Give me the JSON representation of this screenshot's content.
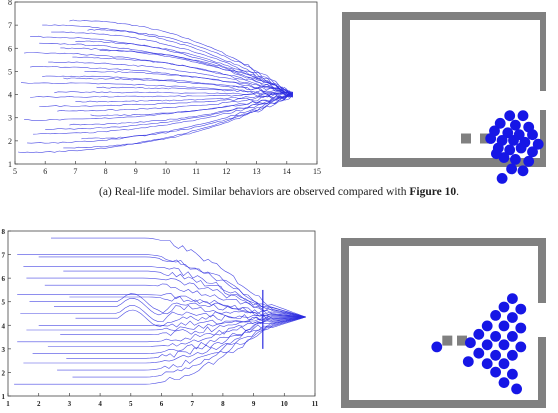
{
  "caption": {
    "prefix": "(a) Real-life model. Similar behaviors are observed compared with ",
    "figure_ref": "Figure 10",
    "suffix": "."
  },
  "colors": {
    "trajectory": "#2b2bdf",
    "agent": "#1616e6",
    "wall": "#808080",
    "obstacle": "#808080"
  },
  "chart_data": [
    {
      "type": "line",
      "title": "",
      "xlabel": "",
      "ylabel": "",
      "xlim": [
        5,
        15
      ],
      "ylim": [
        1,
        8
      ],
      "x_ticks": [
        5,
        6,
        7,
        8,
        9,
        10,
        11,
        12,
        13,
        14,
        15
      ],
      "y_ticks": [
        1,
        2,
        3,
        4,
        5,
        6,
        7,
        8
      ],
      "exit_point": [
        14.2,
        4.0
      ],
      "start_y": [
        7.2,
        7.0,
        6.8,
        6.7,
        6.5,
        6.3,
        6.2,
        6.0,
        5.9,
        5.8,
        5.6,
        5.4,
        5.2,
        5.0,
        4.8,
        4.7,
        4.5,
        4.3,
        4.1,
        3.9,
        3.7,
        3.5,
        3.3,
        3.1,
        2.9,
        2.7,
        2.5,
        2.3,
        2.1,
        1.9,
        1.7,
        1.5
      ],
      "start_x": [
        6.8,
        5.9,
        7.4,
        6.2,
        5.5,
        7.0,
        5.8,
        6.5,
        7.8,
        5.3,
        6.9,
        6.1,
        5.5,
        7.3,
        5.9,
        6.6,
        5.2,
        7.7,
        6.3,
        5.5,
        7.0,
        5.8,
        6.4,
        7.5,
        5.3,
        6.8,
        6.0,
        5.6,
        7.2,
        5.4,
        6.6,
        5.1
      ]
    },
    {
      "type": "line",
      "title": "",
      "xlabel": "",
      "ylabel": "",
      "xlim": [
        1,
        11
      ],
      "ylim": [
        1,
        8
      ],
      "x_ticks": [
        1,
        2,
        3,
        4,
        5,
        6,
        7,
        8,
        9,
        10,
        11
      ],
      "y_ticks": [
        1,
        2,
        3,
        4,
        5,
        6,
        7,
        8
      ],
      "exit_point": [
        10.7,
        4.35
      ],
      "wall_x": 9.3,
      "start_y": [
        7.7,
        7.0,
        6.9,
        6.5,
        6.3,
        6.0,
        5.7,
        5.3,
        5.2,
        5.0,
        4.8,
        4.5,
        4.3,
        4.0,
        3.8,
        3.6,
        3.3,
        3.1,
        2.8,
        2.6,
        2.4,
        2.1,
        1.8,
        1.5
      ],
      "start_x": [
        2.4,
        1.3,
        2.0,
        1.5,
        2.8,
        1.6,
        2.2,
        1.3,
        3.0,
        1.7,
        2.5,
        1.4,
        3.2,
        2.0,
        1.6,
        2.7,
        1.3,
        2.3,
        1.8,
        2.9,
        1.5,
        2.6,
        3.1,
        1.2
      ]
    }
  ],
  "scene_top": {
    "agents": [
      [
        5.3,
        2.3
      ],
      [
        6.0,
        2.3
      ],
      [
        4.8,
        2.7
      ],
      [
        5.6,
        2.8
      ],
      [
        6.3,
        2.9
      ],
      [
        4.5,
        3.1
      ],
      [
        5.2,
        3.2
      ],
      [
        5.8,
        3.3
      ],
      [
        6.5,
        3.3
      ],
      [
        4.3,
        3.5
      ],
      [
        4.9,
        3.6
      ],
      [
        5.5,
        3.6
      ],
      [
        6.1,
        3.7
      ],
      [
        6.8,
        3.8
      ],
      [
        4.7,
        4.0
      ],
      [
        5.3,
        4.1
      ],
      [
        5.9,
        4.0
      ],
      [
        6.5,
        4.2
      ],
      [
        5.0,
        4.5
      ],
      [
        5.6,
        4.6
      ],
      [
        6.3,
        4.7
      ],
      [
        5.4,
        5.1
      ],
      [
        6.0,
        5.2
      ],
      [
        4.9,
        5.6
      ],
      [
        4.6,
        4.3
      ]
    ],
    "obstacles": [
      [
        3.0,
        3.5
      ],
      [
        4.0,
        3.5
      ]
    ]
  },
  "scene_bottom": {
    "agents": [
      [
        6.4,
        1.6
      ],
      [
        6.0,
        2.0
      ],
      [
        6.8,
        2.1
      ],
      [
        5.6,
        2.4
      ],
      [
        6.4,
        2.5
      ],
      [
        5.2,
        2.9
      ],
      [
        6.0,
        2.9
      ],
      [
        6.8,
        3.0
      ],
      [
        4.8,
        3.3
      ],
      [
        5.6,
        3.4
      ],
      [
        6.4,
        3.4
      ],
      [
        4.4,
        3.7
      ],
      [
        5.2,
        3.8
      ],
      [
        6.0,
        3.8
      ],
      [
        6.8,
        3.9
      ],
      [
        2.8,
        3.9
      ],
      [
        4.8,
        4.2
      ],
      [
        5.6,
        4.3
      ],
      [
        6.4,
        4.3
      ],
      [
        4.3,
        4.6
      ],
      [
        5.2,
        4.7
      ],
      [
        6.0,
        4.7
      ],
      [
        5.6,
        5.1
      ],
      [
        6.4,
        5.2
      ],
      [
        6.0,
        5.6
      ],
      [
        6.6,
        5.9
      ]
    ],
    "obstacles": [
      [
        3.3,
        3.6
      ],
      [
        4.0,
        3.6
      ]
    ]
  }
}
